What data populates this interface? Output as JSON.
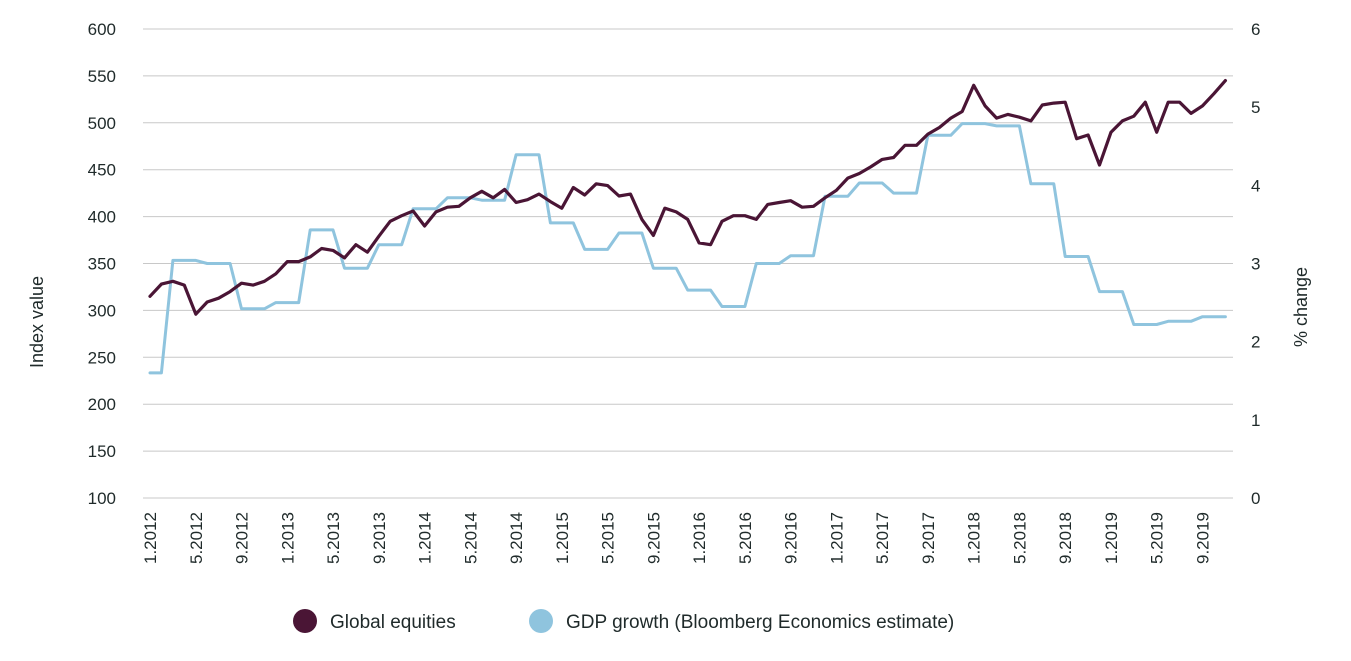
{
  "chart_data": {
    "type": "line",
    "title": "",
    "y_left": {
      "label": "Index value",
      "ticks": [
        "600",
        "550",
        "500",
        "450",
        "400",
        "350",
        "300",
        "250",
        "200",
        "150",
        "100"
      ],
      "range": [
        100,
        600
      ]
    },
    "y_right": {
      "label": "% change",
      "ticks": [
        "6",
        "5",
        "4",
        "3",
        "2",
        "1",
        "0"
      ],
      "range": [
        0,
        6
      ]
    },
    "x_ticks": [
      "1.2012",
      "5.2012",
      "9.2012",
      "1.2013",
      "5.2013",
      "9.2013",
      "1.2014",
      "5.2014",
      "9.2014",
      "1.2015",
      "5.2015",
      "9.2015",
      "1.2016",
      "5.2016",
      "9.2016",
      "1.2017",
      "5.2017",
      "9.2017",
      "1.2018",
      "5.2018",
      "9.2018",
      "1.2019",
      "5.2019",
      "9.2019"
    ],
    "x_range": [
      "1.2012",
      "12.2019"
    ],
    "grid": "horizontal",
    "legend_position": "bottom",
    "series": [
      {
        "name": "Global equities",
        "axis": "left",
        "color": "#4a1535",
        "start": "1.2012",
        "values": [
          315,
          328,
          331,
          327,
          296,
          309,
          313,
          320,
          329,
          327,
          331,
          339,
          352,
          352,
          357,
          366,
          364,
          356,
          370,
          362,
          379,
          395,
          401,
          406,
          390,
          405,
          410,
          411,
          420,
          427,
          420,
          429,
          415,
          418,
          424,
          416,
          409,
          431,
          423,
          435,
          433,
          422,
          424,
          397,
          380,
          409,
          405,
          397,
          372,
          370,
          395,
          401,
          401,
          397,
          413,
          415,
          417,
          410,
          411,
          420,
          428,
          441,
          446,
          453,
          461,
          463,
          476,
          476,
          488,
          495,
          505,
          512,
          540,
          518,
          505,
          509,
          506,
          502,
          519,
          521,
          522,
          483,
          487,
          455,
          490,
          502,
          507,
          522,
          490,
          522,
          522,
          510,
          518,
          531,
          545
        ]
      },
      {
        "name": "GDP growth (Bloomberg Economics estimate)",
        "axis": "right",
        "color": "#8fc4de",
        "start": "1.2012",
        "values": [
          1.6,
          1.6,
          3.04,
          3.04,
          3.04,
          3.0,
          3.0,
          3.0,
          2.42,
          2.42,
          2.42,
          2.5,
          2.5,
          2.5,
          3.43,
          3.43,
          3.43,
          2.94,
          2.94,
          2.94,
          3.24,
          3.24,
          3.24,
          3.7,
          3.7,
          3.7,
          3.84,
          3.84,
          3.84,
          3.81,
          3.81,
          3.81,
          4.39,
          4.39,
          4.39,
          3.52,
          3.52,
          3.52,
          3.18,
          3.18,
          3.18,
          3.39,
          3.39,
          3.39,
          2.94,
          2.94,
          2.94,
          2.66,
          2.66,
          2.66,
          2.45,
          2.45,
          2.45,
          3.0,
          3.0,
          3.0,
          3.1,
          3.1,
          3.1,
          3.86,
          3.86,
          3.86,
          4.03,
          4.03,
          4.03,
          3.9,
          3.9,
          3.9,
          4.64,
          4.64,
          4.64,
          4.79,
          4.79,
          4.79,
          4.76,
          4.76,
          4.76,
          4.02,
          4.02,
          4.02,
          3.09,
          3.09,
          3.09,
          2.64,
          2.64,
          2.64,
          2.22,
          2.22,
          2.22,
          2.26,
          2.26,
          2.26,
          2.32,
          2.32,
          2.32
        ]
      }
    ]
  }
}
